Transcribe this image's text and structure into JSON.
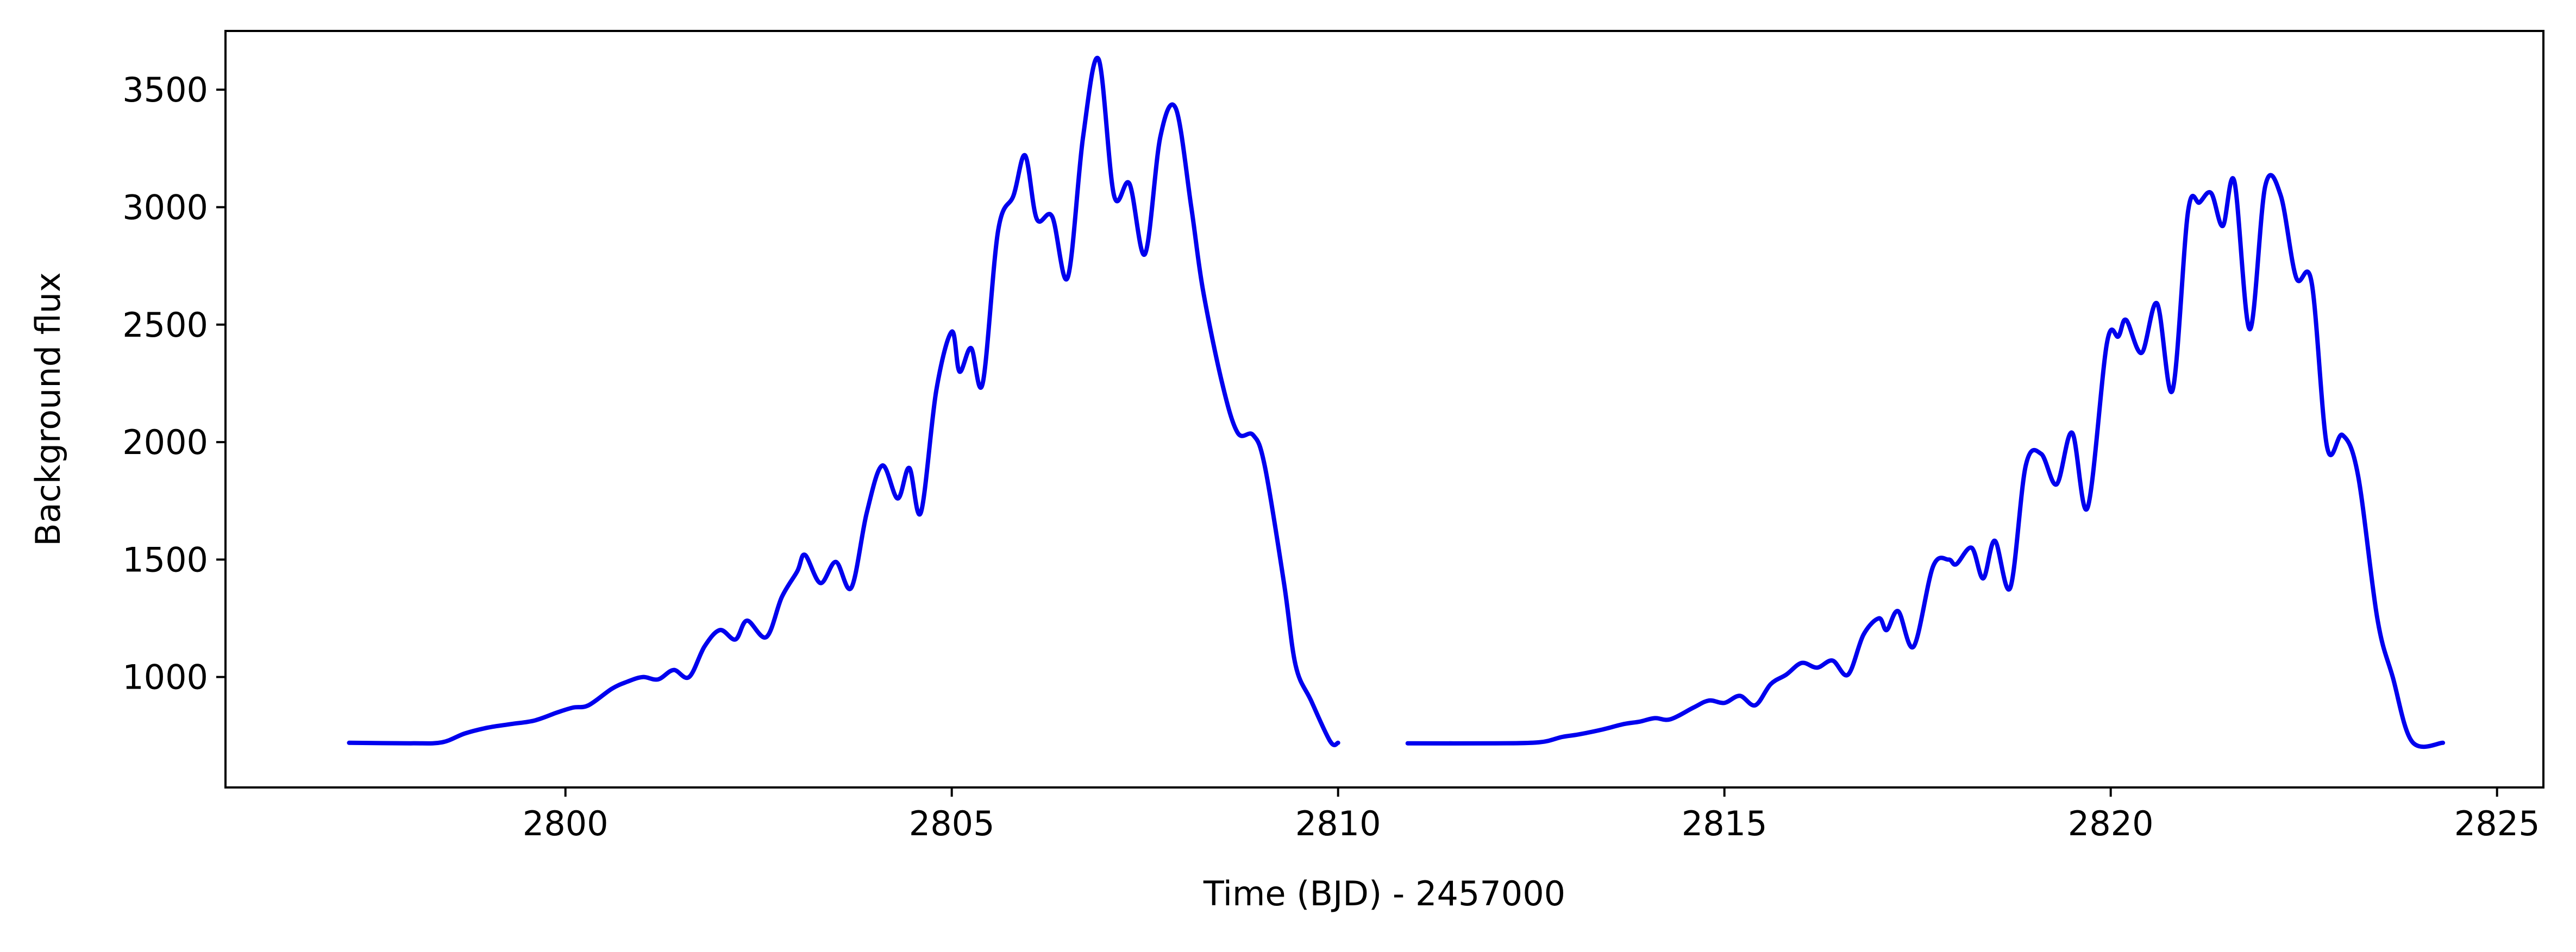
{
  "chart_data": {
    "type": "line",
    "title": "",
    "xlabel": "Time (BJD) - 2457000",
    "ylabel": "Background flux",
    "xlim": [
      2795.6,
      2825.6
    ],
    "ylim": [
      530,
      3750
    ],
    "xticks": [
      2800,
      2805,
      2810,
      2815,
      2820,
      2825
    ],
    "yticks": [
      1000,
      1500,
      2000,
      2500,
      3000,
      3500
    ],
    "grid": false,
    "legend": "none",
    "line_color": "#0000ee",
    "series": [
      {
        "segments": [
          [
            [
              2797.2,
              720
            ],
            [
              2798.0,
              718
            ],
            [
              2798.4,
              722
            ],
            [
              2798.7,
              760
            ],
            [
              2799.0,
              785
            ],
            [
              2799.3,
              800
            ],
            [
              2799.6,
              815
            ],
            [
              2799.9,
              850
            ],
            [
              2800.1,
              870
            ],
            [
              2800.3,
              880
            ],
            [
              2800.6,
              950
            ],
            [
              2800.8,
              980
            ],
            [
              2801.0,
              1000
            ],
            [
              2801.2,
              990
            ],
            [
              2801.4,
              1030
            ],
            [
              2801.6,
              1000
            ],
            [
              2801.8,
              1130
            ],
            [
              2802.0,
              1200
            ],
            [
              2802.2,
              1160
            ],
            [
              2802.35,
              1240
            ],
            [
              2802.6,
              1170
            ],
            [
              2802.8,
              1340
            ],
            [
              2803.0,
              1450
            ],
            [
              2803.1,
              1520
            ],
            [
              2803.3,
              1400
            ],
            [
              2803.5,
              1490
            ],
            [
              2803.7,
              1380
            ],
            [
              2803.9,
              1700
            ],
            [
              2804.1,
              1900
            ],
            [
              2804.3,
              1760
            ],
            [
              2804.45,
              1890
            ],
            [
              2804.6,
              1700
            ],
            [
              2804.8,
              2220
            ],
            [
              2805.0,
              2470
            ],
            [
              2805.1,
              2300
            ],
            [
              2805.25,
              2400
            ],
            [
              2805.4,
              2250
            ],
            [
              2805.6,
              2900
            ],
            [
              2805.8,
              3050
            ],
            [
              2805.95,
              3220
            ],
            [
              2806.1,
              2950
            ],
            [
              2806.3,
              2960
            ],
            [
              2806.5,
              2700
            ],
            [
              2806.7,
              3300
            ],
            [
              2806.9,
              3630
            ],
            [
              2807.1,
              3050
            ],
            [
              2807.3,
              3100
            ],
            [
              2807.5,
              2800
            ],
            [
              2807.7,
              3300
            ],
            [
              2807.9,
              3420
            ],
            [
              2808.1,
              3000
            ],
            [
              2808.25,
              2650
            ],
            [
              2808.5,
              2250
            ],
            [
              2808.7,
              2040
            ],
            [
              2808.9,
              2030
            ],
            [
              2809.05,
              1900
            ],
            [
              2809.3,
              1400
            ],
            [
              2809.45,
              1050
            ],
            [
              2809.65,
              900
            ],
            [
              2809.9,
              725
            ],
            [
              2810.0,
              720
            ]
          ],
          [
            [
              2810.9,
              718
            ],
            [
              2812.0,
              718
            ],
            [
              2812.6,
              722
            ],
            [
              2812.9,
              745
            ],
            [
              2813.1,
              755
            ],
            [
              2813.4,
              775
            ],
            [
              2813.7,
              800
            ],
            [
              2813.9,
              810
            ],
            [
              2814.1,
              825
            ],
            [
              2814.3,
              820
            ],
            [
              2814.6,
              870
            ],
            [
              2814.8,
              900
            ],
            [
              2815.0,
              890
            ],
            [
              2815.2,
              920
            ],
            [
              2815.4,
              880
            ],
            [
              2815.6,
              970
            ],
            [
              2815.8,
              1010
            ],
            [
              2816.0,
              1060
            ],
            [
              2816.2,
              1040
            ],
            [
              2816.4,
              1070
            ],
            [
              2816.6,
              1010
            ],
            [
              2816.8,
              1180
            ],
            [
              2817.0,
              1250
            ],
            [
              2817.1,
              1200
            ],
            [
              2817.25,
              1280
            ],
            [
              2817.45,
              1130
            ],
            [
              2817.7,
              1470
            ],
            [
              2817.9,
              1500
            ],
            [
              2818.0,
              1480
            ],
            [
              2818.2,
              1550
            ],
            [
              2818.35,
              1420
            ],
            [
              2818.5,
              1580
            ],
            [
              2818.7,
              1380
            ],
            [
              2818.9,
              1900
            ],
            [
              2819.1,
              1950
            ],
            [
              2819.3,
              1820
            ],
            [
              2819.5,
              2040
            ],
            [
              2819.7,
              1720
            ],
            [
              2819.95,
              2420
            ],
            [
              2820.1,
              2450
            ],
            [
              2820.2,
              2520
            ],
            [
              2820.4,
              2380
            ],
            [
              2820.6,
              2590
            ],
            [
              2820.8,
              2220
            ],
            [
              2821.0,
              2980
            ],
            [
              2821.15,
              3020
            ],
            [
              2821.3,
              3060
            ],
            [
              2821.45,
              2920
            ],
            [
              2821.6,
              3110
            ],
            [
              2821.8,
              2480
            ],
            [
              2822.0,
              3090
            ],
            [
              2822.2,
              3050
            ],
            [
              2822.4,
              2700
            ],
            [
              2822.6,
              2680
            ],
            [
              2822.8,
              1980
            ],
            [
              2823.0,
              2030
            ],
            [
              2823.2,
              1860
            ],
            [
              2823.45,
              1250
            ],
            [
              2823.65,
              1000
            ],
            [
              2823.9,
              725
            ],
            [
              2824.3,
              720
            ]
          ]
        ]
      }
    ]
  }
}
